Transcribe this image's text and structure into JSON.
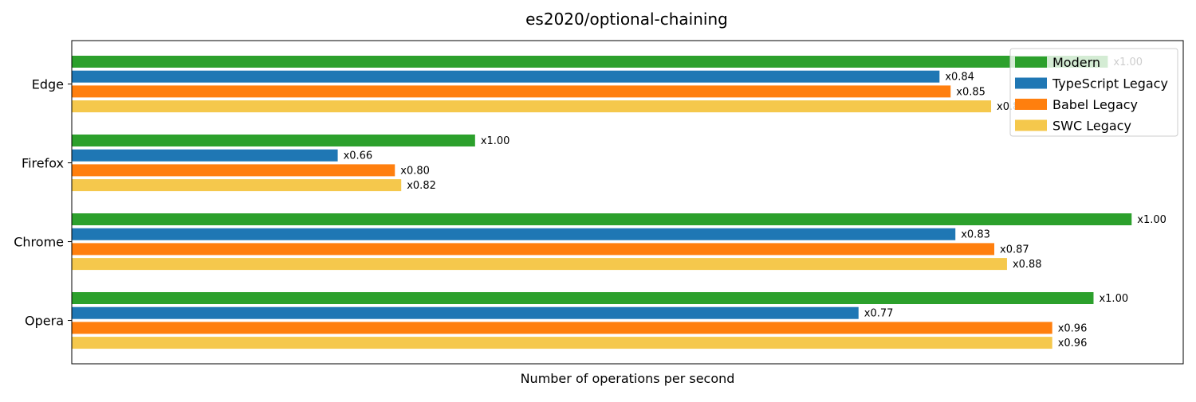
{
  "chart_data": {
    "type": "bar",
    "orientation": "horizontal",
    "title": "es2020/optional-chaining",
    "xlabel": "Number of operations per second",
    "ylabel": "",
    "categories": [
      "Edge",
      "Firefox",
      "Chrome",
      "Opera"
    ],
    "series": [
      {
        "name": "Modern",
        "color": "#2ca02c",
        "values": [
          1305,
          508,
          1335,
          1287
        ],
        "labels": [
          "x1.00",
          "x1.00",
          "x1.00",
          "x1.00"
        ]
      },
      {
        "name": "TypeScript Legacy",
        "color": "#1f77b4",
        "values": [
          1093,
          335,
          1113,
          991
        ],
        "labels": [
          "x0.84",
          "x0.66",
          "x0.83",
          "x0.77"
        ]
      },
      {
        "name": "Babel Legacy",
        "color": "#ff7f0e",
        "values": [
          1107,
          407,
          1162,
          1235
        ],
        "labels": [
          "x0.85",
          "x0.80",
          "x0.87",
          "x0.96"
        ]
      },
      {
        "name": "SWC Legacy",
        "color": "#f5c84c",
        "values": [
          1158,
          415,
          1178,
          1235
        ],
        "labels": [
          "x0.89",
          "x0.82",
          "x0.88",
          "x0.96"
        ]
      }
    ],
    "xlim": [
      0,
      1400
    ],
    "x_ticks_visible": false,
    "grid": false,
    "legend_position": "top-right"
  }
}
